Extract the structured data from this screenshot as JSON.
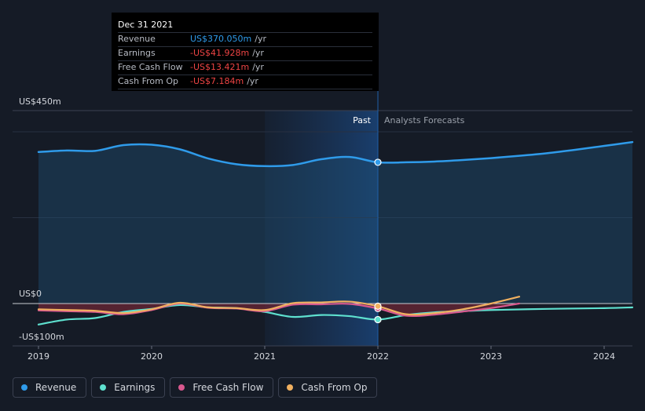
{
  "tooltip": {
    "date": "Dec 31 2021",
    "rows": [
      {
        "label": "Revenue",
        "value": "US$370.050m",
        "unit": "/yr",
        "color": "#2f9bea"
      },
      {
        "label": "Earnings",
        "value": "-US$41.928m",
        "unit": "/yr",
        "color": "#ee4444"
      },
      {
        "label": "Free Cash Flow",
        "value": "-US$13.421m",
        "unit": "/yr",
        "color": "#ee4444"
      },
      {
        "label": "Cash From Op",
        "value": "-US$7.184m",
        "unit": "/yr",
        "color": "#ee4444"
      }
    ]
  },
  "labels": {
    "past": "Past",
    "forecast": "Analysts Forecasts"
  },
  "legend": [
    {
      "label": "Revenue",
      "color": "#2f9bea"
    },
    {
      "label": "Earnings",
      "color": "#5ee0cf"
    },
    {
      "label": "Free Cash Flow",
      "color": "#d8588e"
    },
    {
      "label": "Cash From Op",
      "color": "#f0b060"
    }
  ],
  "chart_data": {
    "type": "line",
    "x_ticks": [
      2019,
      2020,
      2021,
      2022,
      2023,
      2024
    ],
    "x_tick_labels": [
      "2019",
      "2020",
      "2021",
      "2022",
      "2023",
      "2024"
    ],
    "xlim": [
      2019,
      2024.25
    ],
    "ylim": [
      -100,
      450
    ],
    "y_tick_labels": [
      {
        "value": 450,
        "label": "US$450m"
      },
      {
        "value": 0,
        "label": "US$0"
      },
      {
        "value": -100,
        "label": "-US$100m"
      }
    ],
    "past_range": [
      2021,
      2022
    ],
    "tooltip_x": 2022,
    "series": [
      {
        "name": "Revenue",
        "color": "#2f9bea",
        "x": [
          2019.0,
          2019.25,
          2019.5,
          2019.75,
          2020.0,
          2020.25,
          2020.5,
          2020.75,
          2021.0,
          2021.25,
          2021.5,
          2021.75,
          2022.0,
          2022.25,
          2022.5,
          2022.75,
          2023.0,
          2023.25,
          2023.5,
          2023.75,
          2024.0,
          2024.25
        ],
        "y": [
          397,
          401,
          400,
          415,
          416,
          404,
          380,
          365,
          360,
          363,
          378,
          384,
          370,
          370,
          372,
          376,
          381,
          387,
          394,
          403,
          413,
          423
        ]
      },
      {
        "name": "Earnings",
        "color": "#5ee0cf",
        "x": [
          2019.0,
          2019.25,
          2019.5,
          2019.75,
          2020.0,
          2020.25,
          2020.5,
          2020.75,
          2021.0,
          2021.25,
          2021.5,
          2021.75,
          2022.0,
          2022.25,
          2022.5,
          2022.75,
          2023.0,
          2023.5,
          2024.0,
          2024.25
        ],
        "y": [
          -55,
          -42,
          -38,
          -22,
          -14,
          -4,
          -10,
          -12,
          -22,
          -35,
          -30,
          -33,
          -42,
          -30,
          -23,
          -20,
          -17,
          -14,
          -12,
          -10
        ]
      },
      {
        "name": "Free Cash Flow",
        "color": "#d8588e",
        "x": [
          2019.0,
          2019.25,
          2019.5,
          2019.75,
          2020.0,
          2020.25,
          2020.5,
          2020.75,
          2021.0,
          2021.25,
          2021.5,
          2021.75,
          2022.0,
          2022.25,
          2022.5,
          2022.75,
          2023.0,
          2023.25
        ],
        "y": [
          -18,
          -20,
          -22,
          -28,
          -17,
          0,
          -11,
          -13,
          -20,
          -3,
          -2,
          -1,
          -13,
          -32,
          -29,
          -21,
          -12,
          0
        ]
      },
      {
        "name": "Cash From Op",
        "color": "#f0b060",
        "x": [
          2019.0,
          2019.25,
          2019.5,
          2019.75,
          2020.0,
          2020.25,
          2020.5,
          2020.75,
          2021.0,
          2021.25,
          2021.5,
          2021.75,
          2022.0,
          2022.25,
          2022.5,
          2022.75,
          2023.0,
          2023.25
        ],
        "y": [
          -15,
          -17,
          -19,
          -25,
          -15,
          2,
          -10,
          -12,
          -17,
          1,
          3,
          5,
          -7,
          -28,
          -25,
          -15,
          0,
          18
        ]
      }
    ]
  }
}
